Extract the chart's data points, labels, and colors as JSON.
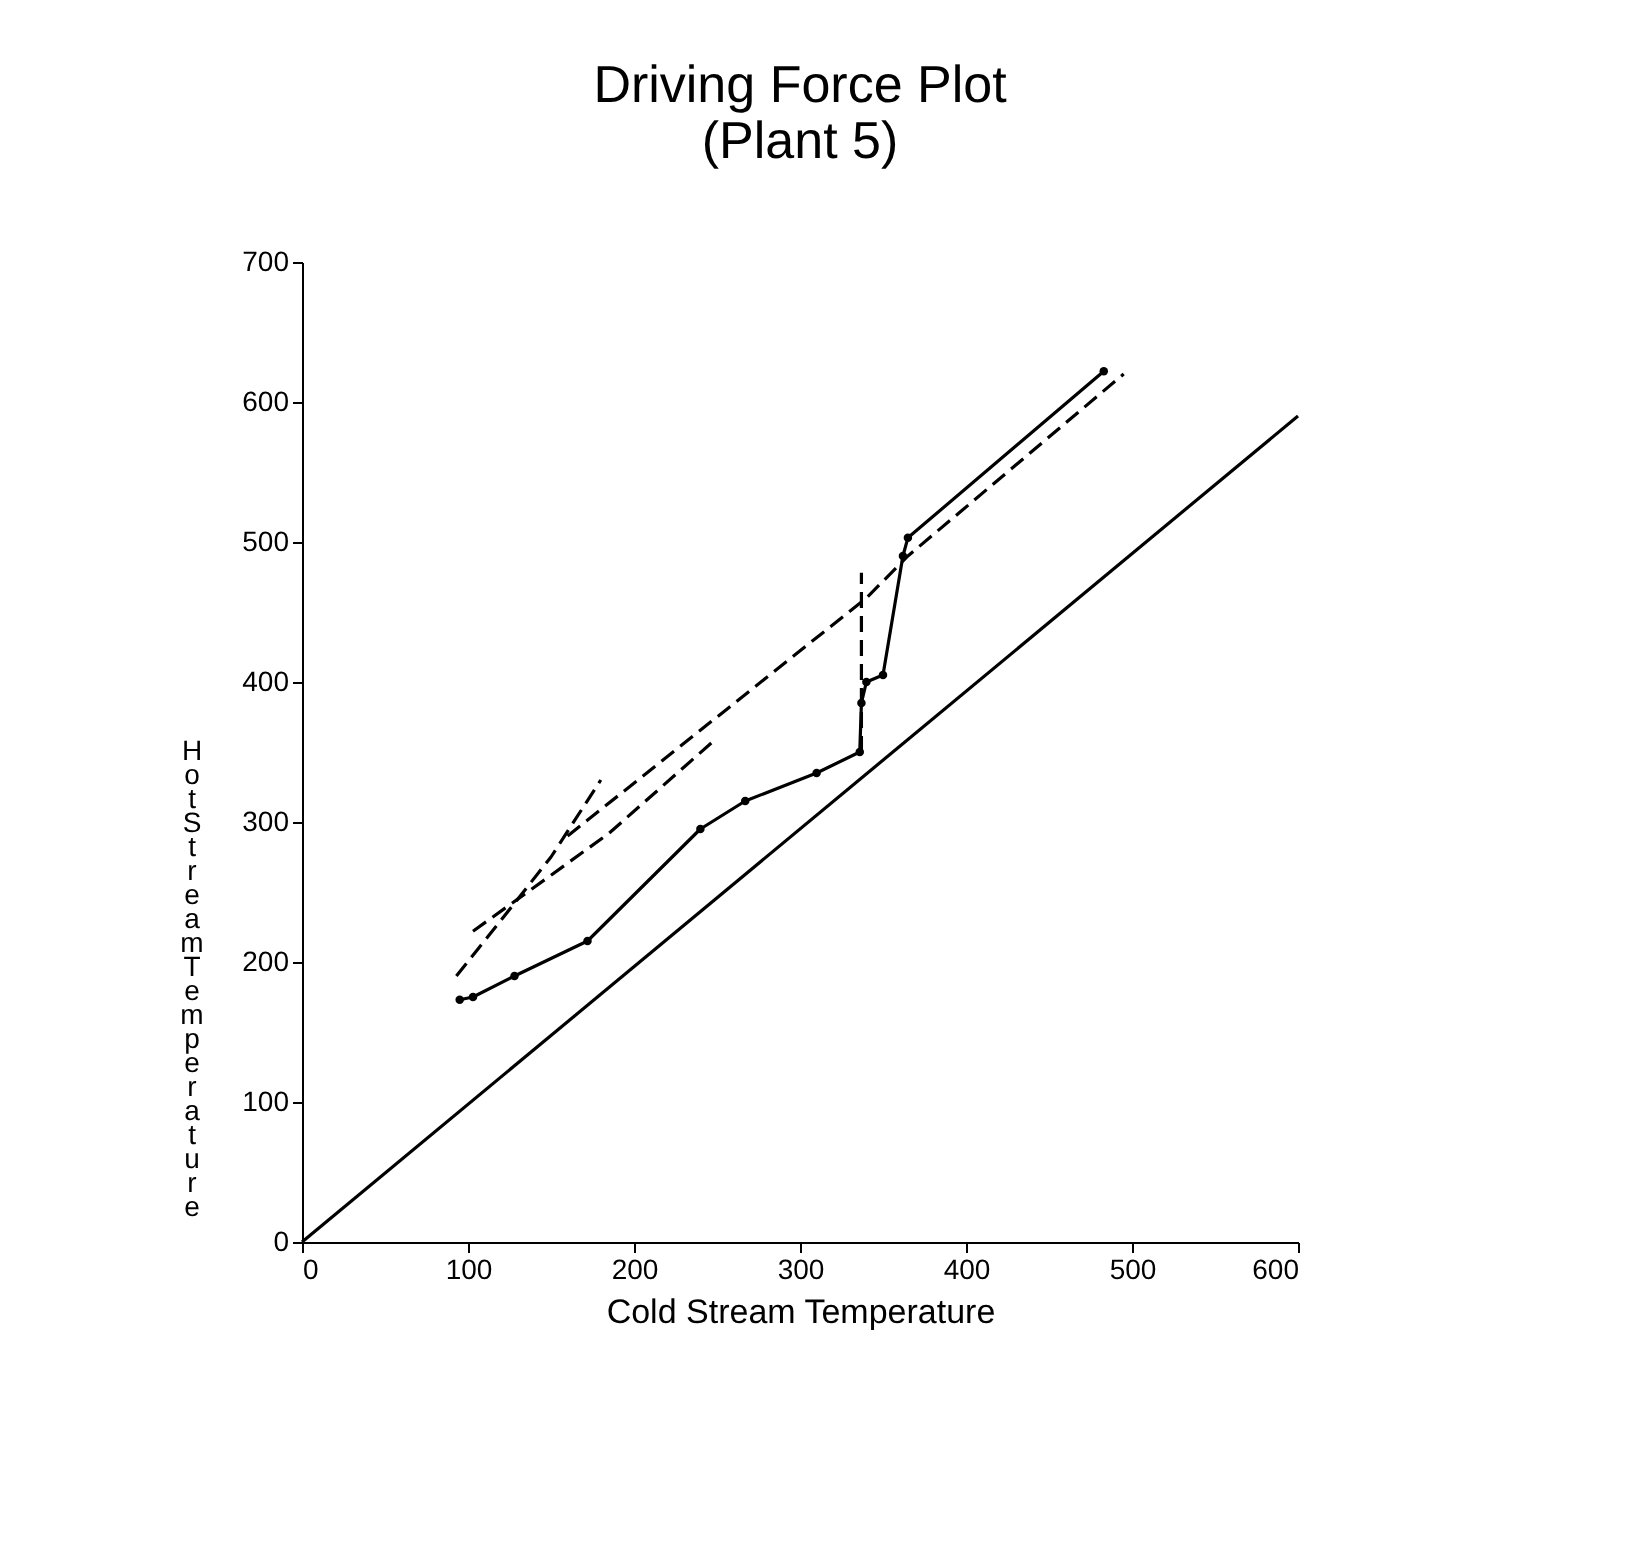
{
  "chart_data": {
    "type": "line",
    "title": "Driving Force Plot\n(Plant 5)",
    "xlabel": "Cold Stream Temperature",
    "ylabel": "Hot Stream Temperature",
    "xlim": [
      0,
      600
    ],
    "xticks": [
      0,
      100,
      200,
      300,
      400,
      500,
      600
    ],
    "ylim": [
      0,
      700
    ],
    "yticks": [
      0,
      100,
      200,
      300,
      400,
      500,
      600,
      700
    ],
    "grid": false,
    "series": [
      {
        "color": "#000000",
        "line_style": "solid",
        "marker": "circle",
        "x": [
          95,
          103,
          128,
          172,
          240,
          267,
          310,
          336,
          337,
          340,
          350,
          362,
          365,
          483
        ],
        "values": [
          173,
          175,
          190,
          215,
          295,
          315,
          335,
          350,
          385,
          400,
          405,
          490,
          503,
          622
        ]
      },
      {
        "color": "#000000",
        "line_style": "dashed",
        "marker": "none",
        "x": [
          93,
          120,
          150,
          180
        ],
        "values": [
          190,
          230,
          275,
          330
        ]
      },
      {
        "color": "#000000",
        "line_style": "dashed",
        "marker": "none",
        "x": [
          103,
          150,
          185,
          250
        ],
        "values": [
          222,
          262,
          292,
          360
        ]
      },
      {
        "color": "#000000",
        "line_style": "dashed",
        "marker": "none",
        "x": [
          160,
          340,
          365,
          495
        ],
        "values": [
          290,
          460,
          490,
          620
        ]
      },
      {
        "color": "#000000",
        "line_style": "dashed",
        "marker": "none",
        "x": [
          337,
          337
        ],
        "values": [
          350,
          478
        ]
      },
      {
        "color": "#000000",
        "line_style": "solid",
        "marker": "none",
        "x": [
          0,
          600
        ],
        "values": [
          0,
          590
        ]
      }
    ]
  }
}
